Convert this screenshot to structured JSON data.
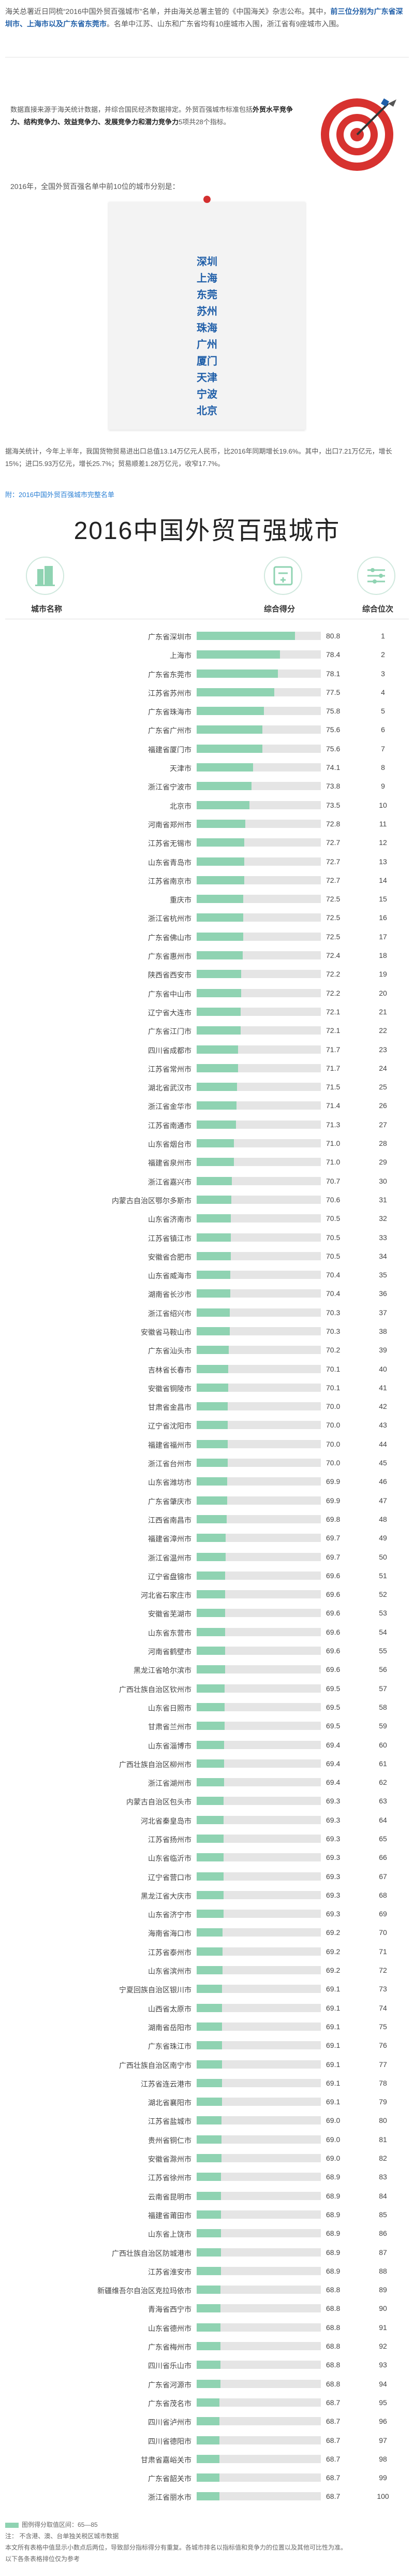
{
  "intro": {
    "lead": "海关总署近日同梳“2016中国外贸百强城市”名单，并由海关总署主管的《中国海关》杂志公布。其中，",
    "highlight": "前三位分别为广东省深圳市、上海市以及广东省东莞市",
    "tail": "。名单中江苏、山东和广东省均有10座城市入围，浙江省有9座城市入围。"
  },
  "callout": {
    "text_pre": "数据直接来源于海关统计数据，并综合国民经济数据排定。外贸百强城市标准包括",
    "text_bold": "外贸水平竞争力、结构竞争力、效益竞争力、发展竞争力和潜力竞争力",
    "text_post": "5项共28个指标。"
  },
  "line_2016": "2016年，全国外贸百强名单中前10位的城市分别是：",
  "top10": [
    "深圳",
    "上海",
    "东莞",
    "苏州",
    "珠海",
    "广州",
    "厦门",
    "天津",
    "宁波",
    "北京"
  ],
  "stats": "据海关统计，今年上半年，我国货物贸易进出口总值13.14万亿元人民币，比2016年同期增长19.6%。其中，出口7.21万亿元，增长15%；进口5.93万亿元，增长25.7%；贸易顺差1.28万亿元，收窄17.7%。",
  "appendix": "附：2016中国外贸百强城市完整名单",
  "big_title": "2016中国外贸百强城市",
  "headers": {
    "city": "城市名称",
    "score": "综合得分",
    "rank": "综合位次"
  },
  "icons": {
    "city": "building-icon",
    "score": "calculator-icon",
    "rank": "sliders-icon",
    "hero": "target-dart-icon"
  },
  "colors": {
    "bar": "#8fd3b2",
    "bar_bg": "#e5e5e5",
    "highlight": "#1f5ea8",
    "pin": "#d32f2f"
  },
  "rows": [
    {
      "city": "广东省深圳市",
      "score": "80.8",
      "rank": "1"
    },
    {
      "city": "上海市",
      "score": "78.4",
      "rank": "2"
    },
    {
      "city": "广东省东莞市",
      "score": "78.1",
      "rank": "3"
    },
    {
      "city": "江苏省苏州市",
      "score": "77.5",
      "rank": "4"
    },
    {
      "city": "广东省珠海市",
      "score": "75.8",
      "rank": "5"
    },
    {
      "city": "广东省广州市",
      "score": "75.6",
      "rank": "6"
    },
    {
      "city": "福建省厦门市",
      "score": "75.6",
      "rank": "7"
    },
    {
      "city": "天津市",
      "score": "74.1",
      "rank": "8"
    },
    {
      "city": "浙江省宁波市",
      "score": "73.8",
      "rank": "9"
    },
    {
      "city": "北京市",
      "score": "73.5",
      "rank": "10"
    },
    {
      "city": "河南省郑州市",
      "score": "72.8",
      "rank": "11"
    },
    {
      "city": "江苏省无锡市",
      "score": "72.7",
      "rank": "12"
    },
    {
      "city": "山东省青岛市",
      "score": "72.7",
      "rank": "13"
    },
    {
      "city": "江苏省南京市",
      "score": "72.7",
      "rank": "14"
    },
    {
      "city": "重庆市",
      "score": "72.5",
      "rank": "15"
    },
    {
      "city": "浙江省杭州市",
      "score": "72.5",
      "rank": "16"
    },
    {
      "city": "广东省佛山市",
      "score": "72.5",
      "rank": "17"
    },
    {
      "city": "广东省惠州市",
      "score": "72.4",
      "rank": "18"
    },
    {
      "city": "陕西省西安市",
      "score": "72.2",
      "rank": "19"
    },
    {
      "city": "广东省中山市",
      "score": "72.2",
      "rank": "20"
    },
    {
      "city": "辽宁省大连市",
      "score": "72.1",
      "rank": "21"
    },
    {
      "city": "广东省江门市",
      "score": "72.1",
      "rank": "22"
    },
    {
      "city": "四川省成都市",
      "score": "71.7",
      "rank": "23"
    },
    {
      "city": "江苏省常州市",
      "score": "71.7",
      "rank": "24"
    },
    {
      "city": "湖北省武汉市",
      "score": "71.5",
      "rank": "25"
    },
    {
      "city": "浙江省金华市",
      "score": "71.4",
      "rank": "26"
    },
    {
      "city": "江苏省南通市",
      "score": "71.3",
      "rank": "27"
    },
    {
      "city": "山东省烟台市",
      "score": "71.0",
      "rank": "28"
    },
    {
      "city": "福建省泉州市",
      "score": "71.0",
      "rank": "29"
    },
    {
      "city": "浙江省嘉兴市",
      "score": "70.7",
      "rank": "30"
    },
    {
      "city": "内蒙古自治区鄂尔多斯市",
      "score": "70.6",
      "rank": "31"
    },
    {
      "city": "山东省济南市",
      "score": "70.5",
      "rank": "32"
    },
    {
      "city": "江苏省镇江市",
      "score": "70.5",
      "rank": "33"
    },
    {
      "city": "安徽省合肥市",
      "score": "70.5",
      "rank": "34"
    },
    {
      "city": "山东省威海市",
      "score": "70.4",
      "rank": "35"
    },
    {
      "city": "湖南省长沙市",
      "score": "70.4",
      "rank": "36"
    },
    {
      "city": "浙江省绍兴市",
      "score": "70.3",
      "rank": "37"
    },
    {
      "city": "安徽省马鞍山市",
      "score": "70.3",
      "rank": "38"
    },
    {
      "city": "广东省汕头市",
      "score": "70.2",
      "rank": "39"
    },
    {
      "city": "吉林省长春市",
      "score": "70.1",
      "rank": "40"
    },
    {
      "city": "安徽省铜陵市",
      "score": "70.1",
      "rank": "41"
    },
    {
      "city": "甘肃省金昌市",
      "score": "70.0",
      "rank": "42"
    },
    {
      "city": "辽宁省沈阳市",
      "score": "70.0",
      "rank": "43"
    },
    {
      "city": "福建省福州市",
      "score": "70.0",
      "rank": "44"
    },
    {
      "city": "浙江省台州市",
      "score": "70.0",
      "rank": "45"
    },
    {
      "city": "山东省潍坊市",
      "score": "69.9",
      "rank": "46"
    },
    {
      "city": "广东省肇庆市",
      "score": "69.9",
      "rank": "47"
    },
    {
      "city": "江西省南昌市",
      "score": "69.8",
      "rank": "48"
    },
    {
      "city": "福建省漳州市",
      "score": "69.7",
      "rank": "49"
    },
    {
      "city": "浙江省温州市",
      "score": "69.7",
      "rank": "50"
    },
    {
      "city": "辽宁省盘锦市",
      "score": "69.6",
      "rank": "51"
    },
    {
      "city": "河北省石家庄市",
      "score": "69.6",
      "rank": "52"
    },
    {
      "city": "安徽省芜湖市",
      "score": "69.6",
      "rank": "53"
    },
    {
      "city": "山东省东营市",
      "score": "69.6",
      "rank": "54"
    },
    {
      "city": "河南省鹤壁市",
      "score": "69.6",
      "rank": "55"
    },
    {
      "city": "黑龙江省哈尔滨市",
      "score": "69.6",
      "rank": "56"
    },
    {
      "city": "广西壮族自治区钦州市",
      "score": "69.5",
      "rank": "57"
    },
    {
      "city": "山东省日照市",
      "score": "69.5",
      "rank": "58"
    },
    {
      "city": "甘肃省兰州市",
      "score": "69.5",
      "rank": "59"
    },
    {
      "city": "山东省淄博市",
      "score": "69.4",
      "rank": "60"
    },
    {
      "city": "广西壮族自治区柳州市",
      "score": "69.4",
      "rank": "61"
    },
    {
      "city": "浙江省湖州市",
      "score": "69.4",
      "rank": "62"
    },
    {
      "city": "内蒙古自治区包头市",
      "score": "69.3",
      "rank": "63"
    },
    {
      "city": "河北省秦皇岛市",
      "score": "69.3",
      "rank": "64"
    },
    {
      "city": "江苏省扬州市",
      "score": "69.3",
      "rank": "65"
    },
    {
      "city": "山东省临沂市",
      "score": "69.3",
      "rank": "66"
    },
    {
      "city": "辽宁省营口市",
      "score": "69.3",
      "rank": "67"
    },
    {
      "city": "黑龙江省大庆市",
      "score": "69.3",
      "rank": "68"
    },
    {
      "city": "山东省济宁市",
      "score": "69.3",
      "rank": "69"
    },
    {
      "city": "海南省海口市",
      "score": "69.2",
      "rank": "70"
    },
    {
      "city": "江苏省泰州市",
      "score": "69.2",
      "rank": "71"
    },
    {
      "city": "山东省滨州市",
      "score": "69.2",
      "rank": "72"
    },
    {
      "city": "宁夏回族自治区银川市",
      "score": "69.1",
      "rank": "73"
    },
    {
      "city": "山西省太原市",
      "score": "69.1",
      "rank": "74"
    },
    {
      "city": "湖南省岳阳市",
      "score": "69.1",
      "rank": "75"
    },
    {
      "city": "广东省珠江市",
      "score": "69.1",
      "rank": "76"
    },
    {
      "city": "广西壮族自治区南宁市",
      "score": "69.1",
      "rank": "77"
    },
    {
      "city": "江苏省连云港市",
      "score": "69.1",
      "rank": "78"
    },
    {
      "city": "湖北省襄阳市",
      "score": "69.1",
      "rank": "79"
    },
    {
      "city": "江苏省盐城市",
      "score": "69.0",
      "rank": "80"
    },
    {
      "city": "贵州省铜仁市",
      "score": "69.0",
      "rank": "81"
    },
    {
      "city": "安徽省滁州市",
      "score": "69.0",
      "rank": "82"
    },
    {
      "city": "江苏省徐州市",
      "score": "68.9",
      "rank": "83"
    },
    {
      "city": "云南省昆明市",
      "score": "68.9",
      "rank": "84"
    },
    {
      "city": "福建省莆田市",
      "score": "68.9",
      "rank": "85"
    },
    {
      "city": "山东省上饶市",
      "score": "68.9",
      "rank": "86"
    },
    {
      "city": "广西壮族自治区防城港市",
      "score": "68.9",
      "rank": "87"
    },
    {
      "city": "江苏省淮安市",
      "score": "68.9",
      "rank": "88"
    },
    {
      "city": "新疆维吾尔自治区克拉玛依市",
      "score": "68.8",
      "rank": "89"
    },
    {
      "city": "青海省西宁市",
      "score": "68.8",
      "rank": "90"
    },
    {
      "city": "山东省德州市",
      "score": "68.8",
      "rank": "91"
    },
    {
      "city": "广东省梅州市",
      "score": "68.8",
      "rank": "92"
    },
    {
      "city": "四川省乐山市",
      "score": "68.8",
      "rank": "93"
    },
    {
      "city": "广东省河源市",
      "score": "68.8",
      "rank": "94"
    },
    {
      "city": "广东省茂名市",
      "score": "68.7",
      "rank": "95"
    },
    {
      "city": "四川省泸州市",
      "score": "68.7",
      "rank": "96"
    },
    {
      "city": "四川省德阳市",
      "score": "68.7",
      "rank": "97"
    },
    {
      "city": "甘肃省嘉峪关市",
      "score": "68.7",
      "rank": "98"
    },
    {
      "city": "广东省韶关市",
      "score": "68.7",
      "rank": "99"
    },
    {
      "city": "浙江省丽水市",
      "score": "68.7",
      "rank": "100"
    }
  ],
  "score_range": [
    65,
    85
  ],
  "legend": {
    "swatch_label": "图例得分取值区间：65—85",
    "note1": "注：  不含港、澳、台单独关税区城市数据",
    "note2": "本文所有表格中值显示小数点后两位，导致部分指标得分有重复。各城市排名以指标值和竞争力的位置以及其他可比性为准。",
    "note3": "以下各条表格排位仅为参考"
  }
}
